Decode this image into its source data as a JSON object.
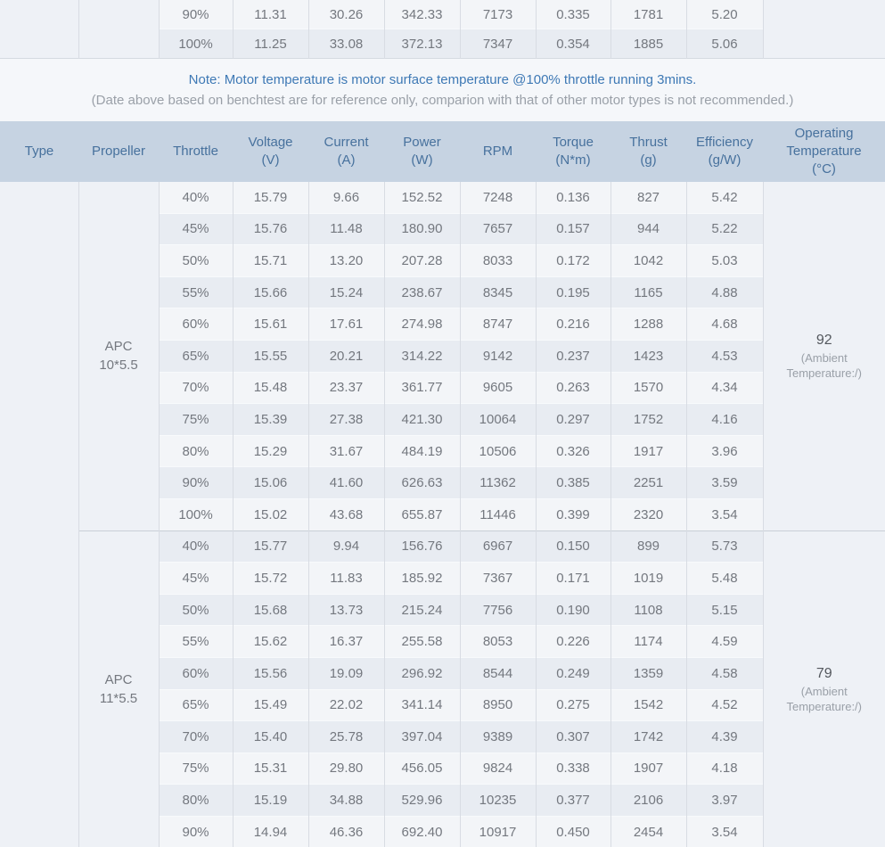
{
  "colors": {
    "header_bg": "#c6d3e2",
    "header_text": "#47719d",
    "note_blue": "#3e79b5",
    "note_gray": "#9aa0a8",
    "row_light": "#f3f5f8",
    "row_dark": "#e8ecf2",
    "merged_cell_bg": "#eef1f6",
    "cell_text": "#74787f",
    "border": "#d8dce3"
  },
  "note": {
    "line1": "Note: Motor temperature is motor surface temperature @100% throttle running 3mins.",
    "line2": "(Date above based on benchtest are for reference only, comparion with that of other motor types is not recommended.)"
  },
  "header": {
    "columns": [
      {
        "key": "type",
        "title": "Type",
        "unit": ""
      },
      {
        "key": "propeller",
        "title": "Propeller",
        "unit": ""
      },
      {
        "key": "throttle",
        "title": "Throttle",
        "unit": ""
      },
      {
        "key": "voltage",
        "title": "Voltage",
        "unit": "(V)"
      },
      {
        "key": "current",
        "title": "Current",
        "unit": "(A)"
      },
      {
        "key": "power",
        "title": "Power",
        "unit": "(W)"
      },
      {
        "key": "rpm",
        "title": "RPM",
        "unit": ""
      },
      {
        "key": "torque",
        "title": "Torque",
        "unit": "(N*m)"
      },
      {
        "key": "thrust",
        "title": "Thrust",
        "unit": "(g)"
      },
      {
        "key": "efficiency",
        "title": "Efficiency",
        "unit": "(g/W)"
      },
      {
        "key": "operating-temperature",
        "title": "Operating Temperature",
        "unit": "(°C)"
      }
    ]
  },
  "top_table": {
    "rows": [
      [
        "90%",
        "11.31",
        "30.26",
        "342.33",
        "7173",
        "0.335",
        "1781",
        "5.20"
      ],
      [
        "100%",
        "11.25",
        "33.08",
        "372.13",
        "7347",
        "0.354",
        "1885",
        "5.06"
      ]
    ]
  },
  "sections": [
    {
      "propeller_line1": "APC",
      "propeller_line2": "10*5.5",
      "temperature_value": "92",
      "temperature_note": "(Ambient Temperature:/)",
      "rows": [
        [
          "40%",
          "15.79",
          "9.66",
          "152.52",
          "7248",
          "0.136",
          "827",
          "5.42"
        ],
        [
          "45%",
          "15.76",
          "11.48",
          "180.90",
          "7657",
          "0.157",
          "944",
          "5.22"
        ],
        [
          "50%",
          "15.71",
          "13.20",
          "207.28",
          "8033",
          "0.172",
          "1042",
          "5.03"
        ],
        [
          "55%",
          "15.66",
          "15.24",
          "238.67",
          "8345",
          "0.195",
          "1165",
          "4.88"
        ],
        [
          "60%",
          "15.61",
          "17.61",
          "274.98",
          "8747",
          "0.216",
          "1288",
          "4.68"
        ],
        [
          "65%",
          "15.55",
          "20.21",
          "314.22",
          "9142",
          "0.237",
          "1423",
          "4.53"
        ],
        [
          "70%",
          "15.48",
          "23.37",
          "361.77",
          "9605",
          "0.263",
          "1570",
          "4.34"
        ],
        [
          "75%",
          "15.39",
          "27.38",
          "421.30",
          "10064",
          "0.297",
          "1752",
          "4.16"
        ],
        [
          "80%",
          "15.29",
          "31.67",
          "484.19",
          "10506",
          "0.326",
          "1917",
          "3.96"
        ],
        [
          "90%",
          "15.06",
          "41.60",
          "626.63",
          "11362",
          "0.385",
          "2251",
          "3.59"
        ],
        [
          "100%",
          "15.02",
          "43.68",
          "655.87",
          "11446",
          "0.399",
          "2320",
          "3.54"
        ]
      ]
    },
    {
      "propeller_line1": "APC",
      "propeller_line2": "11*5.5",
      "temperature_value": "79",
      "temperature_note": "(Ambient Temperature:/)",
      "rows": [
        [
          "40%",
          "15.77",
          "9.94",
          "156.76",
          "6967",
          "0.150",
          "899",
          "5.73"
        ],
        [
          "45%",
          "15.72",
          "11.83",
          "185.92",
          "7367",
          "0.171",
          "1019",
          "5.48"
        ],
        [
          "50%",
          "15.68",
          "13.73",
          "215.24",
          "7756",
          "0.190",
          "1108",
          "5.15"
        ],
        [
          "55%",
          "15.62",
          "16.37",
          "255.58",
          "8053",
          "0.226",
          "1174",
          "4.59"
        ],
        [
          "60%",
          "15.56",
          "19.09",
          "296.92",
          "8544",
          "0.249",
          "1359",
          "4.58"
        ],
        [
          "65%",
          "15.49",
          "22.02",
          "341.14",
          "8950",
          "0.275",
          "1542",
          "4.52"
        ],
        [
          "70%",
          "15.40",
          "25.78",
          "397.04",
          "9389",
          "0.307",
          "1742",
          "4.39"
        ],
        [
          "75%",
          "15.31",
          "29.80",
          "456.05",
          "9824",
          "0.338",
          "1907",
          "4.18"
        ],
        [
          "80%",
          "15.19",
          "34.88",
          "529.96",
          "10235",
          "0.377",
          "2106",
          "3.97"
        ],
        [
          "90%",
          "14.94",
          "46.36",
          "692.40",
          "10917",
          "0.450",
          "2454",
          "3.54"
        ]
      ]
    }
  ]
}
